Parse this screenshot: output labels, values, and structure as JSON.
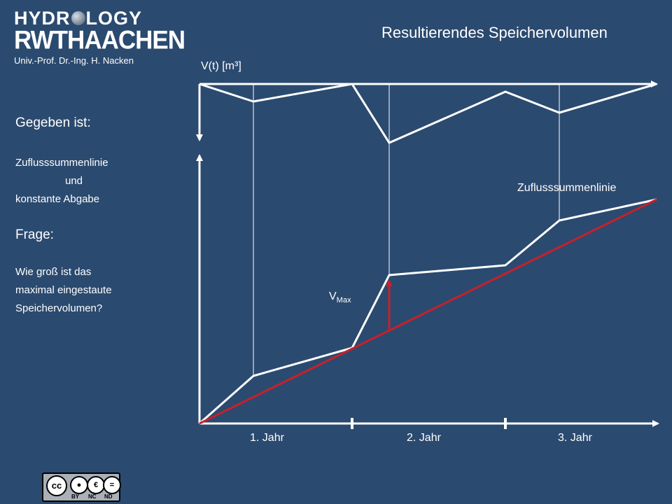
{
  "logo": {
    "hydro_left": "HYDR",
    "hydro_right": "LOGY",
    "rwth": "RWTHAACHEN",
    "professor": "Univ.-Prof. Dr.-Ing. H. Nacken"
  },
  "title": "Resultierendes Speichervolumen",
  "sidebar": {
    "given_heading": "Gegeben ist:",
    "given_line1": "Zuflusssummenlinie",
    "given_line2": "und",
    "given_line3": "konstante Abgabe",
    "question_heading": "Frage:",
    "question_line1": "Wie groß ist das",
    "question_line2": "maximal eingestaute",
    "question_line3": "Speichervolumen?"
  },
  "diagram": {
    "axis_label": "V(t) [m³]",
    "curve_label": "Zuflusssummenlinie",
    "vmax_label": "V",
    "vmax_sub": "Max",
    "years": [
      "1. Jahr",
      "2. Jahr",
      "3. Jahr"
    ],
    "colors": {
      "background": "#2b4a6f",
      "line": "#ffffff",
      "outflow": "#c8202a"
    }
  },
  "license": {
    "cc": "cc",
    "tags": [
      "BY",
      "NC",
      "ND"
    ]
  }
}
